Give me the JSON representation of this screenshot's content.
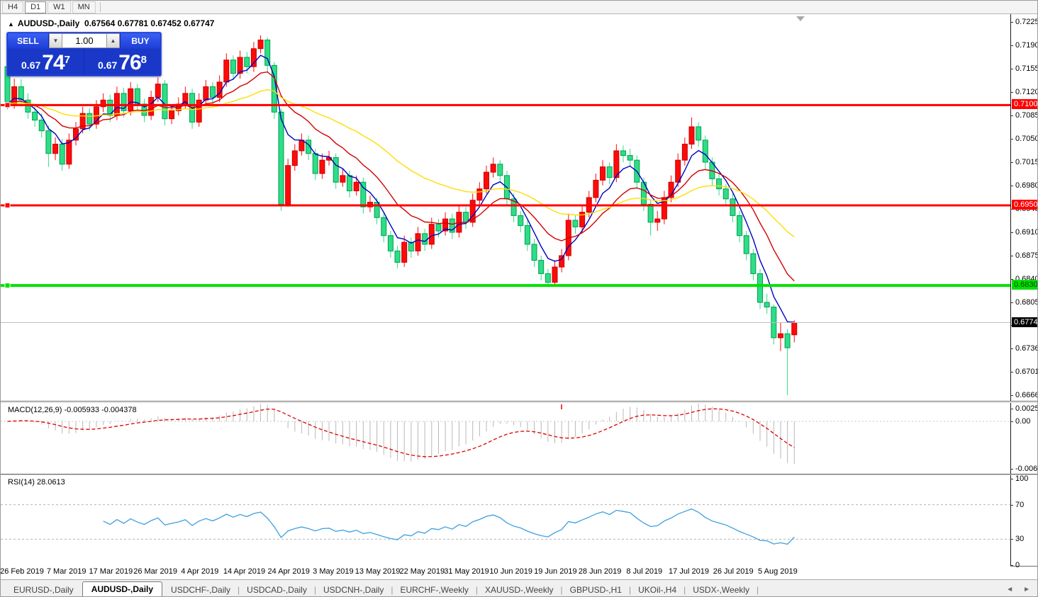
{
  "toolbar": {
    "timeframes": [
      "H4",
      "D1",
      "W1",
      "MN"
    ],
    "active_timeframe": "D1"
  },
  "chart": {
    "title_symbol": "AUDUSD-,Daily",
    "title_ohlc": "0.67564 0.67781 0.67452 0.67747",
    "collapse_arrow": "▲",
    "trade_panel": {
      "sell_label": "SELL",
      "buy_label": "BUY",
      "volume": "1.00",
      "spin_down": "▼",
      "spin_up": "▲",
      "sell_price_small": "0.67",
      "sell_price_big": "74",
      "sell_price_sup": "7",
      "buy_price_small": "0.67",
      "buy_price_big": "76",
      "buy_price_sup": "8"
    }
  },
  "chart_data": {
    "type": "candlestick",
    "symbol": "AUDUSD",
    "timeframe": "Daily",
    "note_color_convention": "red = bullish (up), green = bearish (down)",
    "current_bar": {
      "open": 0.67564,
      "high": 0.67781,
      "low": 0.67452,
      "close": 0.67747
    },
    "price_axis_ticks": [
      "0.72250",
      "0.71900",
      "0.71550",
      "0.71200",
      "0.70850",
      "0.70500",
      "0.70150",
      "0.69800",
      "0.69450",
      "0.69100",
      "0.68750",
      "0.68400",
      "0.68050",
      "0.67710",
      "0.67360",
      "0.67010",
      "0.66660"
    ],
    "x_axis_labels": [
      "26 Feb 2019",
      "7 Mar 2019",
      "17 Mar 2019",
      "26 Mar 2019",
      "4 Apr 2019",
      "14 Apr 2019",
      "24 Apr 2019",
      "3 May 2019",
      "13 May 2019",
      "22 May 2019",
      "31 May 2019",
      "10 Jun 2019",
      "19 Jun 2019",
      "28 Jun 2019",
      "8 Jul 2019",
      "17 Jul 2019",
      "26 Jul 2019",
      "5 Aug 2019"
    ],
    "h_lines": [
      {
        "price": 0.71005,
        "label": "0.71005",
        "color": "#ff0000",
        "width": 3,
        "tag_bg": "#ff0000",
        "tag_fg": "#ffffff",
        "handle": true
      },
      {
        "price": 0.69503,
        "label": "0.69503",
        "color": "#ff0000",
        "width": 3,
        "tag_bg": "#ff0000",
        "tag_fg": "#ffffff",
        "handle": true
      },
      {
        "price": 0.68303,
        "label": "0.68303",
        "color": "#00e100",
        "width": 4,
        "tag_bg": "#00e100",
        "tag_fg": "#064006",
        "handle": true
      }
    ],
    "current_price_line": {
      "price": 0.67747,
      "label": "0.67747",
      "color": "#bfbfbf",
      "tag_bg": "#000000",
      "tag_fg": "#ffffff"
    },
    "moving_averages": [
      {
        "period": 5,
        "method": "ema",
        "color": "#0000c0"
      },
      {
        "period": 13,
        "method": "ema",
        "color": "#d40000"
      },
      {
        "period": 34,
        "method": "ema",
        "color": "#ffdd00"
      }
    ],
    "candles": [
      [
        0.7158,
        0.7162,
        0.7094,
        0.7102
      ],
      [
        0.7102,
        0.714,
        0.7095,
        0.7128
      ],
      [
        0.7128,
        0.7139,
        0.7098,
        0.7108
      ],
      [
        0.7108,
        0.7118,
        0.708,
        0.709
      ],
      [
        0.709,
        0.71,
        0.7068,
        0.7078
      ],
      [
        0.7078,
        0.7088,
        0.7052,
        0.7062
      ],
      [
        0.7062,
        0.707,
        0.7008,
        0.7028
      ],
      [
        0.7028,
        0.7052,
        0.7018,
        0.7042
      ],
      [
        0.7042,
        0.705,
        0.7002,
        0.7012
      ],
      [
        0.7012,
        0.7058,
        0.7005,
        0.7048
      ],
      [
        0.7048,
        0.7075,
        0.704,
        0.7065
      ],
      [
        0.7065,
        0.7098,
        0.7058,
        0.7088
      ],
      [
        0.7088,
        0.7096,
        0.7062,
        0.7072
      ],
      [
        0.7072,
        0.7108,
        0.7065,
        0.7098
      ],
      [
        0.7098,
        0.7118,
        0.709,
        0.7108
      ],
      [
        0.7108,
        0.7116,
        0.7075,
        0.7085
      ],
      [
        0.7085,
        0.7128,
        0.7078,
        0.7118
      ],
      [
        0.7118,
        0.7126,
        0.7082,
        0.7092
      ],
      [
        0.7092,
        0.7135,
        0.7085,
        0.7125
      ],
      [
        0.7125,
        0.7132,
        0.7092,
        0.7102
      ],
      [
        0.7102,
        0.711,
        0.7075,
        0.7085
      ],
      [
        0.7085,
        0.7122,
        0.7078,
        0.7112
      ],
      [
        0.7112,
        0.7142,
        0.7105,
        0.7132
      ],
      [
        0.7132,
        0.7138,
        0.707,
        0.708
      ],
      [
        0.708,
        0.7102,
        0.7072,
        0.7092
      ],
      [
        0.7092,
        0.7112,
        0.7085,
        0.7102
      ],
      [
        0.7102,
        0.7128,
        0.7095,
        0.7118
      ],
      [
        0.7118,
        0.7125,
        0.7065,
        0.7075
      ],
      [
        0.7075,
        0.7118,
        0.7068,
        0.7108
      ],
      [
        0.7108,
        0.7138,
        0.71,
        0.7128
      ],
      [
        0.7128,
        0.7135,
        0.7102,
        0.7112
      ],
      [
        0.7112,
        0.7145,
        0.7105,
        0.7135
      ],
      [
        0.7135,
        0.7178,
        0.7128,
        0.7168
      ],
      [
        0.7168,
        0.7175,
        0.7138,
        0.7148
      ],
      [
        0.7148,
        0.7182,
        0.714,
        0.7172
      ],
      [
        0.7172,
        0.718,
        0.7148,
        0.7158
      ],
      [
        0.7158,
        0.7195,
        0.715,
        0.7185
      ],
      [
        0.7185,
        0.7205,
        0.7178,
        0.7198
      ],
      [
        0.7198,
        0.7202,
        0.715,
        0.716
      ],
      [
        0.716,
        0.7165,
        0.708,
        0.709
      ],
      [
        0.709,
        0.7095,
        0.6942,
        0.6952
      ],
      [
        0.6952,
        0.702,
        0.6948,
        0.701
      ],
      [
        0.701,
        0.7042,
        0.7002,
        0.7032
      ],
      [
        0.7032,
        0.7058,
        0.7025,
        0.7048
      ],
      [
        0.7048,
        0.7055,
        0.7018,
        0.7028
      ],
      [
        0.7028,
        0.7035,
        0.6988,
        0.6998
      ],
      [
        0.6998,
        0.7028,
        0.699,
        0.7018
      ],
      [
        0.7018,
        0.7032,
        0.701,
        0.7022
      ],
      [
        0.7022,
        0.7028,
        0.6975,
        0.6985
      ],
      [
        0.6985,
        0.7005,
        0.6978,
        0.6995
      ],
      [
        0.6995,
        0.7002,
        0.6962,
        0.6972
      ],
      [
        0.6972,
        0.6995,
        0.6965,
        0.6985
      ],
      [
        0.6985,
        0.6992,
        0.6938,
        0.6948
      ],
      [
        0.6948,
        0.6965,
        0.694,
        0.6955
      ],
      [
        0.6955,
        0.6962,
        0.6922,
        0.6932
      ],
      [
        0.6932,
        0.6938,
        0.6895,
        0.6905
      ],
      [
        0.6905,
        0.6912,
        0.6872,
        0.6882
      ],
      [
        0.6882,
        0.689,
        0.6856,
        0.6865
      ],
      [
        0.6865,
        0.6905,
        0.6858,
        0.6895
      ],
      [
        0.6895,
        0.6902,
        0.6872,
        0.6882
      ],
      [
        0.6882,
        0.6918,
        0.6875,
        0.6908
      ],
      [
        0.6908,
        0.6915,
        0.6882,
        0.6892
      ],
      [
        0.6892,
        0.6932,
        0.6885,
        0.6922
      ],
      [
        0.6922,
        0.693,
        0.6902,
        0.6912
      ],
      [
        0.6912,
        0.694,
        0.6905,
        0.693
      ],
      [
        0.693,
        0.6938,
        0.69,
        0.691
      ],
      [
        0.691,
        0.695,
        0.6902,
        0.694
      ],
      [
        0.694,
        0.6948,
        0.6915,
        0.6925
      ],
      [
        0.6925,
        0.6968,
        0.6918,
        0.6958
      ],
      [
        0.6958,
        0.6985,
        0.695,
        0.6975
      ],
      [
        0.6975,
        0.701,
        0.6968,
        0.7
      ],
      [
        0.7,
        0.7022,
        0.6992,
        0.7012
      ],
      [
        0.7012,
        0.7018,
        0.6985,
        0.6995
      ],
      [
        0.6995,
        0.7002,
        0.695,
        0.696
      ],
      [
        0.696,
        0.6968,
        0.6925,
        0.6935
      ],
      [
        0.6935,
        0.6942,
        0.691,
        0.692
      ],
      [
        0.692,
        0.6928,
        0.6882,
        0.6892
      ],
      [
        0.6892,
        0.69,
        0.6858,
        0.6868
      ],
      [
        0.6868,
        0.6875,
        0.6838,
        0.6848
      ],
      [
        0.6848,
        0.6855,
        0.6831,
        0.6835
      ],
      [
        0.6835,
        0.6868,
        0.6832,
        0.6858
      ],
      [
        0.6858,
        0.6885,
        0.685,
        0.6875
      ],
      [
        0.6875,
        0.6938,
        0.6868,
        0.6928
      ],
      [
        0.6928,
        0.6935,
        0.6908,
        0.6918
      ],
      [
        0.6918,
        0.695,
        0.691,
        0.694
      ],
      [
        0.694,
        0.6972,
        0.6932,
        0.6962
      ],
      [
        0.6962,
        0.6998,
        0.6955,
        0.6988
      ],
      [
        0.6988,
        0.7018,
        0.698,
        0.7008
      ],
      [
        0.7008,
        0.7015,
        0.6982,
        0.6992
      ],
      [
        0.6992,
        0.7042,
        0.6985,
        0.7032
      ],
      [
        0.7032,
        0.704,
        0.7015,
        0.7025
      ],
      [
        0.7025,
        0.7035,
        0.7008,
        0.7018
      ],
      [
        0.7018,
        0.7025,
        0.6975,
        0.6985
      ],
      [
        0.6985,
        0.6992,
        0.6942,
        0.6952
      ],
      [
        0.6952,
        0.6958,
        0.6905,
        0.6925
      ],
      [
        0.6925,
        0.6942,
        0.6912,
        0.693
      ],
      [
        0.693,
        0.6972,
        0.6922,
        0.6962
      ],
      [
        0.6962,
        0.6995,
        0.6955,
        0.6985
      ],
      [
        0.6985,
        0.7028,
        0.6978,
        0.7018
      ],
      [
        0.7018,
        0.7052,
        0.701,
        0.7042
      ],
      [
        0.7042,
        0.7082,
        0.7035,
        0.7068
      ],
      [
        0.7068,
        0.7075,
        0.7038,
        0.7048
      ],
      [
        0.7048,
        0.7055,
        0.7005,
        0.7015
      ],
      [
        0.7015,
        0.7022,
        0.698,
        0.699
      ],
      [
        0.699,
        0.6998,
        0.6965,
        0.6975
      ],
      [
        0.6975,
        0.6982,
        0.695,
        0.696
      ],
      [
        0.696,
        0.6968,
        0.6925,
        0.6935
      ],
      [
        0.6935,
        0.6942,
        0.6895,
        0.6905
      ],
      [
        0.6905,
        0.6912,
        0.6868,
        0.6878
      ],
      [
        0.6878,
        0.6885,
        0.6838,
        0.6848
      ],
      [
        0.6848,
        0.6855,
        0.6795,
        0.6805
      ],
      [
        0.6805,
        0.6818,
        0.6788,
        0.6798
      ],
      [
        0.6798,
        0.6802,
        0.6742,
        0.6752
      ],
      [
        0.6752,
        0.6775,
        0.6732,
        0.6758
      ],
      [
        0.6758,
        0.6765,
        0.6666,
        0.6737
      ],
      [
        0.67564,
        0.67781,
        0.67452,
        0.67747
      ]
    ],
    "indicators": {
      "macd": {
        "label": "MACD(12,26,9)",
        "values_text": "-0.005933 -0.004378",
        "main_value": -0.005933,
        "signal_value": -0.004378,
        "params": [
          12,
          26,
          9
        ],
        "axis_labels": [
          "0.002574",
          "0.00",
          "-0.006338"
        ],
        "axis_max": 0.002574,
        "axis_min": -0.006338,
        "histogram_color": "#b8b8b8",
        "signal_color": "#e00000"
      },
      "rsi": {
        "label": "RSI(14)",
        "value_text": "28.0613",
        "value": 28.0613,
        "period": 14,
        "axis_labels": [
          "100",
          "70",
          "30",
          "0"
        ],
        "level_lines": [
          70,
          30
        ],
        "line_color": "#3e9fe0"
      }
    },
    "colors": {
      "bull": "#ff0a0a",
      "bull_border": "#c80000",
      "bear": "#2edd86",
      "bear_border": "#00a050"
    }
  },
  "tabs": {
    "items": [
      "EURUSD-,Daily",
      "AUDUSD-,Daily",
      "USDCHF-,Daily",
      "USDCAD-,Daily",
      "USDCNH-,Daily",
      "EURCHF-,Weekly",
      "XAUUSD-,Weekly",
      "GBPUSD-,H1",
      "UKOil-,H4",
      "USDX-,Weekly"
    ],
    "active": "AUDUSD-,Daily",
    "scroll_left": "◄",
    "scroll_right": "►"
  }
}
